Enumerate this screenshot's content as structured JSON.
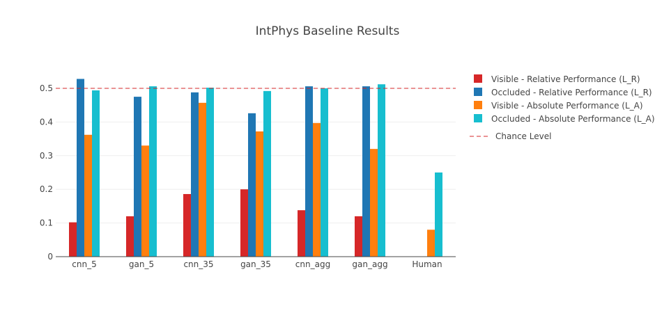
{
  "chart_data": {
    "type": "bar",
    "title": "IntPhys Baseline Results",
    "categories": [
      "cnn_5",
      "gan_5",
      "cnn_35",
      "gan_35",
      "cnn_agg",
      "gan_agg",
      "Human"
    ],
    "series": [
      {
        "name": "Visible - Relative Performance (L_R)",
        "color": "#d62728",
        "values": [
          0.102,
          0.12,
          0.186,
          0.2,
          0.138,
          0.12,
          null
        ]
      },
      {
        "name": "Occluded - Relative Performance (L_R)",
        "color": "#1f77b4",
        "values": [
          0.528,
          0.475,
          0.488,
          0.426,
          0.506,
          0.506,
          null
        ]
      },
      {
        "name": "Visible - Absolute Performance (L_A)",
        "color": "#ff7f0e",
        "values": [
          0.362,
          0.33,
          0.457,
          0.372,
          0.397,
          0.32,
          0.08
        ]
      },
      {
        "name": "Occluded - Absolute Performance (L_A)",
        "color": "#17becf",
        "values": [
          0.494,
          0.506,
          0.502,
          0.492,
          0.5,
          0.512,
          0.25
        ]
      }
    ],
    "chance_level": {
      "name": "Chance Level",
      "value": 0.5,
      "color": "#d62728"
    },
    "ylim": [
      0,
      0.55
    ],
    "yticks": [
      0,
      0.1,
      0.2,
      0.3,
      0.4,
      0.5
    ],
    "grid": true,
    "legend_position": "right"
  }
}
